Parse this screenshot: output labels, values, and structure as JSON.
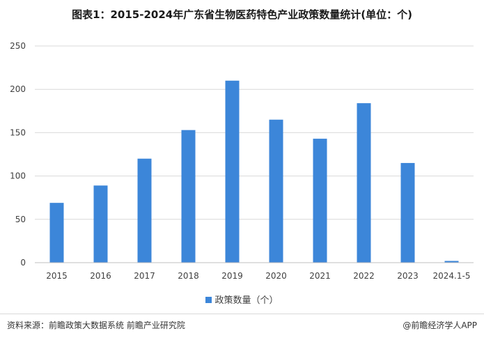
{
  "header": {
    "title": "图表1：2015-2024年广东省生物医药特色产业政策数量统计(单位：个)"
  },
  "chart_data": {
    "type": "bar",
    "title": "图表1：2015-2024年广东省生物医药特色产业政策数量统计(单位：个)",
    "categories": [
      "2015",
      "2016",
      "2017",
      "2018",
      "2019",
      "2020",
      "2021",
      "2022",
      "2023",
      "2024.1-5"
    ],
    "series": [
      {
        "name": "政策数量（个）",
        "values": [
          69,
          89,
          120,
          153,
          210,
          165,
          143,
          184,
          115,
          2
        ],
        "color": "#3c86d9"
      }
    ],
    "y_ticks": [
      "0",
      "50",
      "100",
      "150",
      "200",
      "250"
    ],
    "ylim": [
      0,
      250
    ],
    "xlabel": "",
    "ylabel": "",
    "grid": true,
    "legend_position": "bottom"
  },
  "footer": {
    "source": "资料来源：前瞻政策大数据系统 前瞻产业研究院",
    "brand": "@前瞻经济学人APP"
  }
}
